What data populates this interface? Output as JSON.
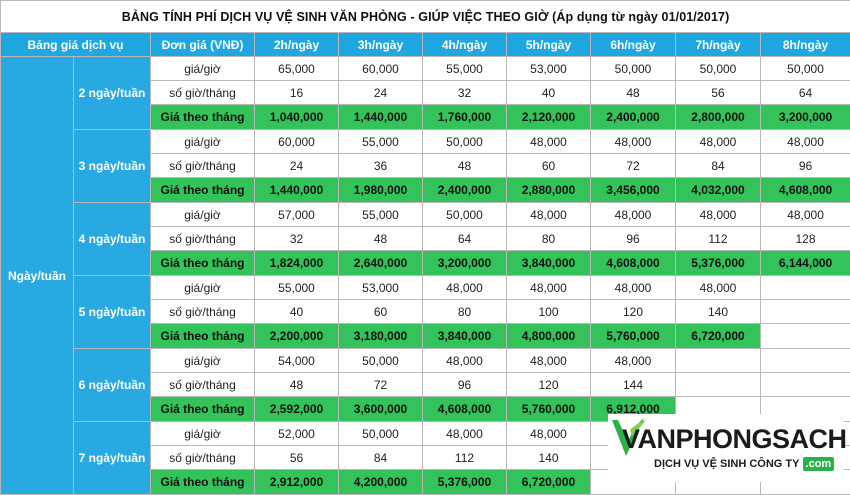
{
  "title": "BẢNG TÍNH PHÍ DỊCH VỤ VỆ SINH VĂN PHÒNG - GIÚP VIỆC THEO GIỜ (Áp dụng từ ngày 01/01/2017)",
  "headers": [
    "Bảng giá dịch vụ",
    "Đơn giá (VNĐ)",
    "2h/ngày",
    "3h/ngày",
    "4h/ngày",
    "5h/ngày",
    "6h/ngày",
    "7h/ngày",
    "8h/ngày"
  ],
  "side_label": "Ngày/tuần",
  "row_labels": {
    "rate": "giá/giờ",
    "hours": "số giờ/tháng",
    "monthly": "Giá theo tháng"
  },
  "groups": [
    {
      "label": "2 ngày/tuần",
      "rate": [
        "65,000",
        "60,000",
        "55,000",
        "53,000",
        "50,000",
        "50,000",
        "50,000"
      ],
      "hours": [
        "16",
        "24",
        "32",
        "40",
        "48",
        "56",
        "64"
      ],
      "monthly": [
        "1,040,000",
        "1,440,000",
        "1,760,000",
        "2,120,000",
        "2,400,000",
        "2,800,000",
        "3,200,000"
      ]
    },
    {
      "label": "3 ngày/tuần",
      "rate": [
        "60,000",
        "55,000",
        "50,000",
        "48,000",
        "48,000",
        "48,000",
        "48,000"
      ],
      "hours": [
        "24",
        "36",
        "48",
        "60",
        "72",
        "84",
        "96"
      ],
      "monthly": [
        "1,440,000",
        "1,980,000",
        "2,400,000",
        "2,880,000",
        "3,456,000",
        "4,032,000",
        "4,608,000"
      ]
    },
    {
      "label": "4 ngày/tuần",
      "rate": [
        "57,000",
        "55,000",
        "50,000",
        "48,000",
        "48,000",
        "48,000",
        "48,000"
      ],
      "hours": [
        "32",
        "48",
        "64",
        "80",
        "96",
        "112",
        "128"
      ],
      "monthly": [
        "1,824,000",
        "2,640,000",
        "3,200,000",
        "3,840,000",
        "4,608,000",
        "5,376,000",
        "6,144,000"
      ]
    },
    {
      "label": "5 ngày/tuần",
      "rate": [
        "55,000",
        "53,000",
        "48,000",
        "48,000",
        "48,000",
        "48,000"
      ],
      "hours": [
        "40",
        "60",
        "80",
        "100",
        "120",
        "140"
      ],
      "monthly": [
        "2,200,000",
        "3,180,000",
        "3,840,000",
        "4,800,000",
        "5,760,000",
        "6,720,000"
      ]
    },
    {
      "label": "6 ngày/tuần",
      "rate": [
        "54,000",
        "50,000",
        "48,000",
        "48,000",
        "48,000"
      ],
      "hours": [
        "48",
        "72",
        "96",
        "120",
        "144"
      ],
      "monthly": [
        "2,592,000",
        "3,600,000",
        "4,608,000",
        "5,760,000",
        "6,912,000"
      ]
    },
    {
      "label": "7 ngày/tuần",
      "rate": [
        "52,000",
        "50,000",
        "48,000",
        "48,000"
      ],
      "hours": [
        "56",
        "84",
        "112",
        "140"
      ],
      "monthly": [
        "2,912,000",
        "4,200,000",
        "5,376,000",
        "6,720,000"
      ]
    }
  ],
  "logo": {
    "name": "VANPHONGSACH",
    "slogan": "DỊCH VỤ VỆ SINH CÔNG TY",
    "suffix": ".com",
    "icon": "leaf-v-icon",
    "accent": "#2bb04a"
  },
  "colors": {
    "header": "#1fa7e2",
    "monthly_row": "#33c35a"
  }
}
